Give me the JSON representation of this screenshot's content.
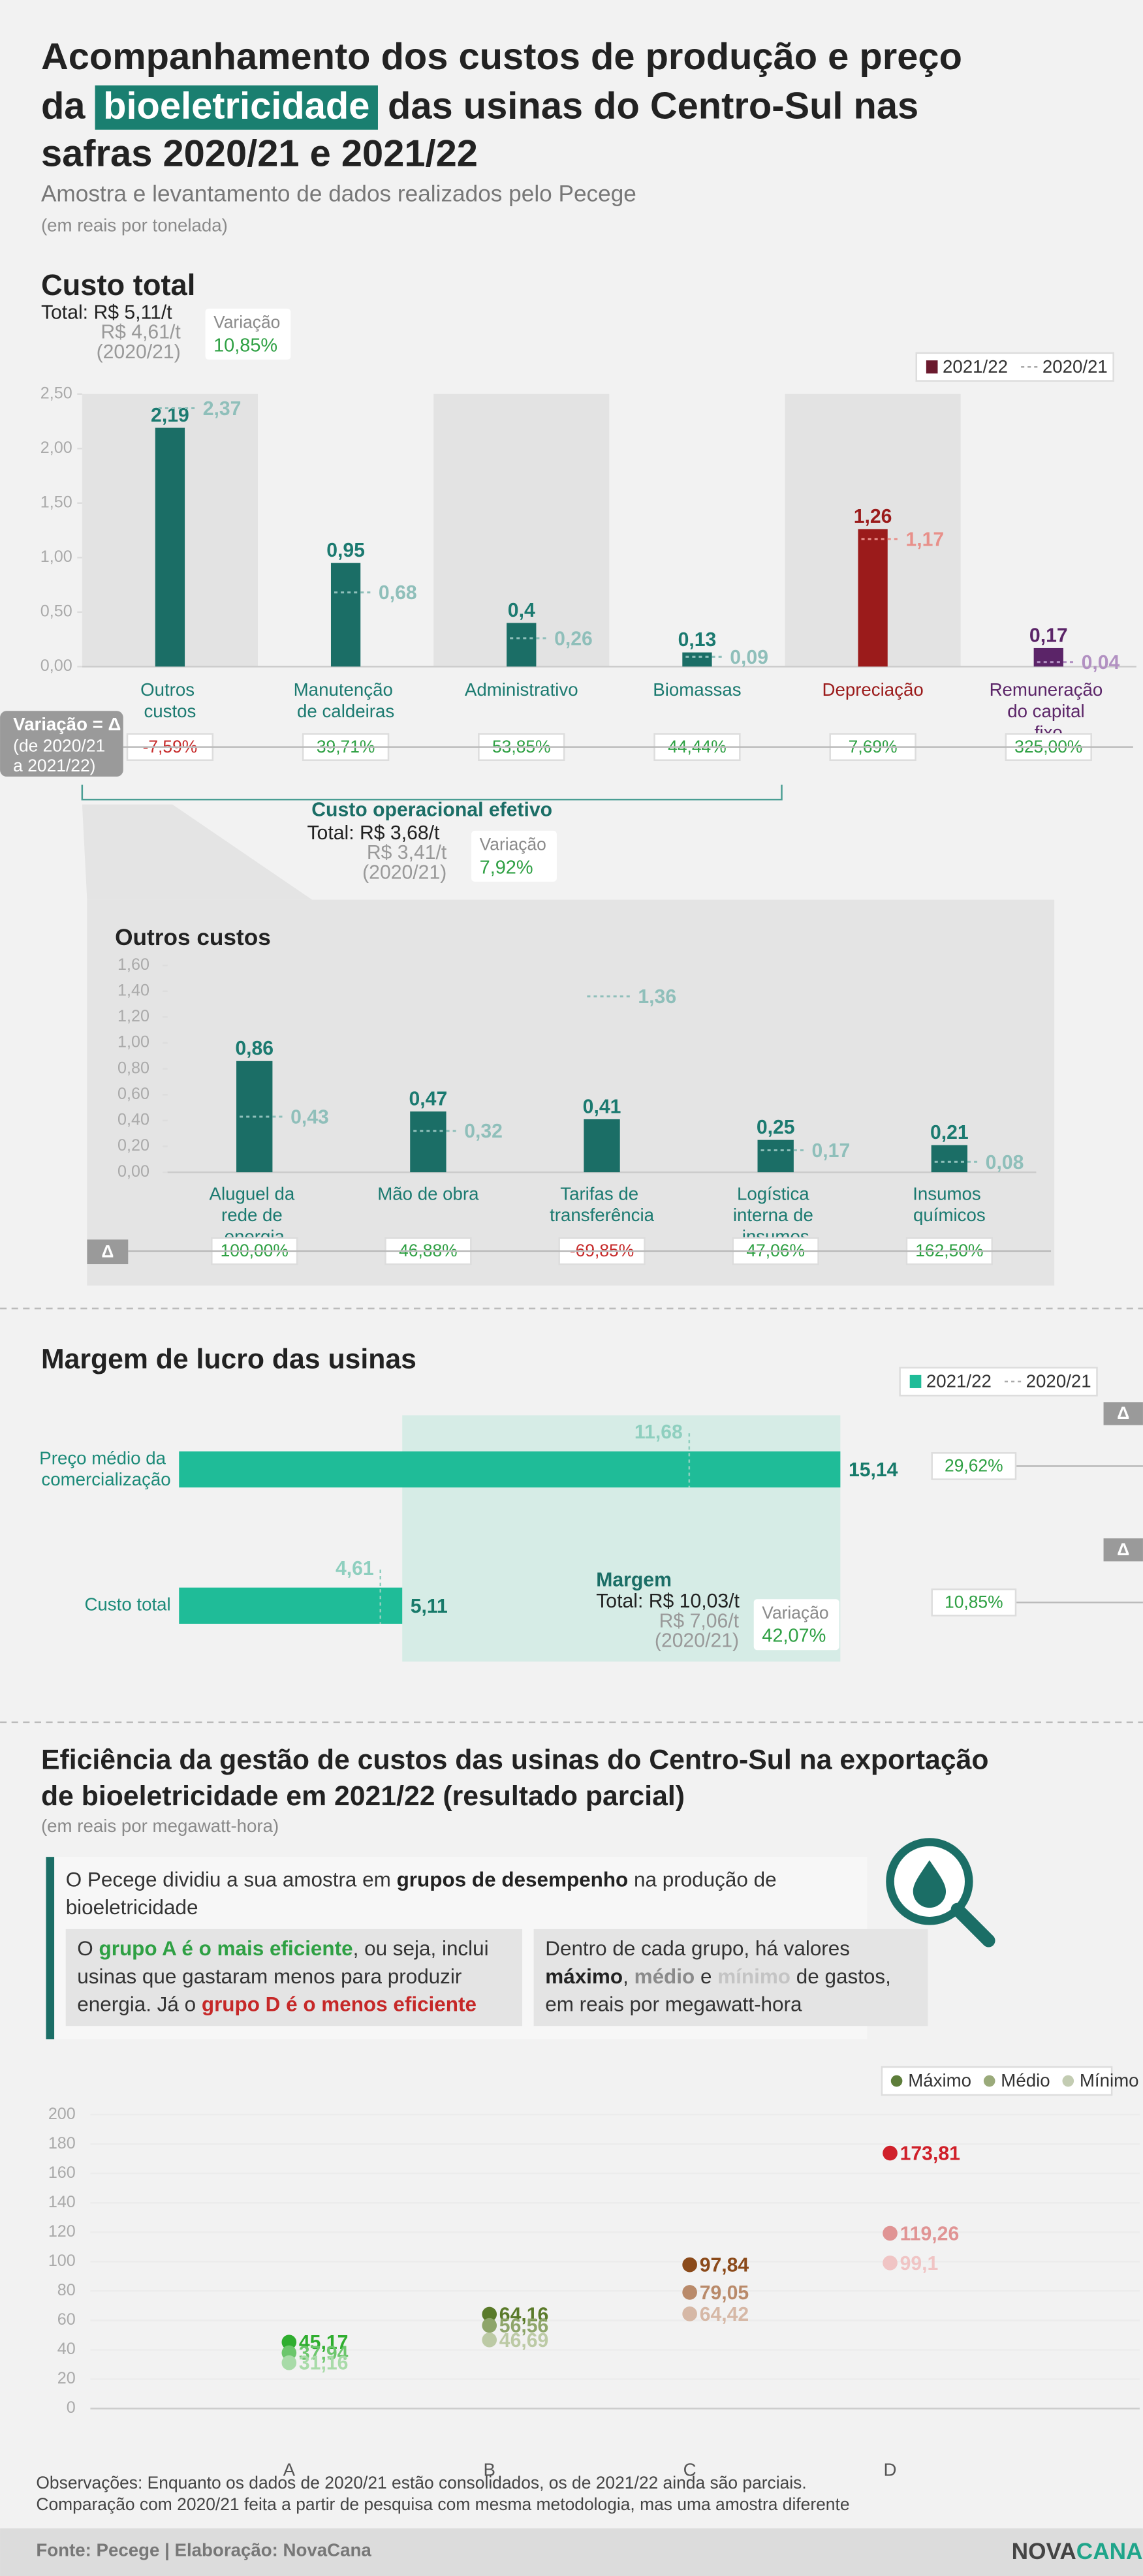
{
  "header": {
    "title_parts": [
      "Acompanhamento dos custos de produção e preço",
      "da",
      "bioeletricidade",
      "das usinas do Centro-Sul nas",
      "safras 2020/21 e 2021/22"
    ],
    "subtitle": "Amostra e levantamento de dados realizados pelo Pecege",
    "unit": "(em reais por tonelada)"
  },
  "chart_data": [
    {
      "type": "bar",
      "title": "Custo total",
      "summary": {
        "total": "Total: R$ 5,11/t",
        "previous": "R$ 4,61/t",
        "previous_period": "(2020/21)",
        "variation_label": "Variação",
        "variation": "10,85%"
      },
      "categories": [
        "Outros custos",
        "Manutenção de caldeiras",
        "Administrativo",
        "Biomassas",
        "Depreciação",
        "Remuneração do capital fixo"
      ],
      "series": [
        {
          "name": "2021/22",
          "color": "#6b1a2e",
          "colors": [
            "#1b6e66",
            "#1b6e66",
            "#1b6e66",
            "#1b6e66",
            "#9b1b1b",
            "#5b2468"
          ],
          "label_colors": [
            "#1b7a70",
            "#1b7a70",
            "#1b7a70",
            "#1b7a70",
            "#9b1b1b",
            "#5b2468"
          ],
          "values": [
            2.19,
            0.95,
            0.4,
            0.13,
            1.26,
            0.17
          ],
          "value_labels": [
            "2,19",
            "0,95",
            "0,4",
            "0,13",
            "1,26",
            "0,17"
          ]
        },
        {
          "name": "2020/21",
          "style": "dashed",
          "color": "#9ec9c4",
          "colors": [
            "#8fbfba",
            "#8fbfba",
            "#8fbfba",
            "#8fbfba",
            "#e8908a",
            "#b291c2"
          ],
          "values": [
            2.37,
            0.68,
            0.26,
            0.09,
            1.17,
            0.04
          ],
          "value_labels": [
            "2,37",
            "0,68",
            "0,26",
            "0,09",
            "1,17",
            "0,04"
          ]
        }
      ],
      "ylim": [
        0,
        2.5
      ],
      "yticks": [
        {
          "value": 0,
          "label": "0,00"
        },
        {
          "value": 0.5,
          "label": "0,50"
        },
        {
          "value": 1,
          "label": "1,00"
        },
        {
          "value": 1.5,
          "label": "1,50"
        },
        {
          "value": 2,
          "label": "2,00"
        },
        {
          "value": 2.5,
          "label": "2,50"
        }
      ],
      "highlight_bands": [
        0,
        2,
        4
      ],
      "legend": "top-right",
      "delta": {
        "label": "Variação = Δ",
        "note": [
          "(de 2020/21",
          "a 2021/22)"
        ],
        "values": [
          "-7,59%",
          "39,71%",
          "53,85%",
          "44,44%",
          "7,69%",
          "325,00%"
        ]
      },
      "subtotal": {
        "title": "Custo operacional efetivo",
        "total": "Total: R$ 3,68/t",
        "previous": "R$ 3,41/t",
        "previous_period": "(2020/21)",
        "variation_label": "Variação",
        "variation": "7,92%"
      }
    },
    {
      "type": "bar",
      "title": "Outros custos",
      "categories": [
        "Aluguel da rede de energia",
        "Mão de obra",
        "Tarifas de transferência",
        "Logística interna de insumos",
        "Insumos químicos"
      ],
      "series": [
        {
          "name": "2021/22",
          "color": "#1b6e66",
          "colors": [
            "#1b6e66",
            "#1b6e66",
            "#1b6e66",
            "#1b6e66",
            "#1b6e66"
          ],
          "label_colors": [
            "#1b7a70",
            "#1b7a70",
            "#1b7a70",
            "#1b7a70",
            "#1b7a70"
          ],
          "values": [
            0.86,
            0.47,
            0.41,
            0.25,
            0.21
          ],
          "value_labels": [
            "0,86",
            "0,47",
            "0,41",
            "0,25",
            "0,21"
          ]
        },
        {
          "name": "2020/21",
          "style": "dashed",
          "color": "#8fbfba",
          "colors": [
            "#8fbfba",
            "#8fbfba",
            "#8fbfba",
            "#8fbfba",
            "#8fbfba"
          ],
          "values": [
            0.43,
            0.32,
            1.36,
            0.17,
            0.08
          ],
          "value_labels": [
            "0,43",
            "0,32",
            "1,36",
            "0,17",
            "0,08"
          ]
        }
      ],
      "ylim": [
        0,
        1.6
      ],
      "yticks": [
        {
          "value": 0,
          "label": "0,00"
        },
        {
          "value": 0.2,
          "label": "0,20"
        },
        {
          "value": 0.4,
          "label": "0,40"
        },
        {
          "value": 0.6,
          "label": "0,60"
        },
        {
          "value": 0.8,
          "label": "0,80"
        },
        {
          "value": 1,
          "label": "1,00"
        },
        {
          "value": 1.2,
          "label": "1,20"
        },
        {
          "value": 1.4,
          "label": "1,40"
        },
        {
          "value": 1.6,
          "label": "1,60"
        }
      ],
      "delta": {
        "label": "Δ",
        "values": [
          "100,00%",
          "46,88%",
          "-69,85%",
          "47,06%",
          "162,50%"
        ]
      }
    },
    {
      "type": "hbar",
      "title": "Margem de lucro das usinas",
      "categories": [
        "Preço médio da comercialização",
        "Custo total"
      ],
      "series": [
        {
          "name": "2021/22",
          "color": "#1fbc98",
          "values": [
            15.14,
            5.11
          ],
          "value_labels": [
            "15,14",
            "5,11"
          ]
        },
        {
          "name": "2020/21",
          "style": "dashed",
          "color": "#8fcfbf",
          "values": [
            11.68,
            4.61
          ],
          "value_labels": [
            "11,68",
            "4,61"
          ]
        }
      ],
      "xlim": [
        0,
        16
      ],
      "legend": "top-right",
      "margin": {
        "title": "Margem",
        "total": "Total: R$ 10,03/t",
        "previous": "R$ 7,06/t",
        "previous_period": "(2020/21)",
        "variation_label": "Variação",
        "variation": "42,07%"
      },
      "delta": {
        "label": "Δ",
        "values": [
          "29,62%",
          "10,85%"
        ]
      }
    },
    {
      "type": "dot",
      "categories": [
        "A",
        "B",
        "C",
        "D"
      ],
      "series": [
        {
          "name": "Máximo",
          "color": "#5d7d3a",
          "colors": [
            "#2fae2f",
            "#5a7a2a",
            "#8b4a1a",
            "#d0202a"
          ],
          "values": [
            45.17,
            64.16,
            97.84,
            173.81
          ],
          "value_labels": [
            "45,17",
            "64,16",
            "97,84",
            "173,81"
          ]
        },
        {
          "name": "Médio",
          "color": "#9aaa7a",
          "colors": [
            "#6cc66c",
            "#8ea56a",
            "#b98a6a",
            "#e09494"
          ],
          "values": [
            37.94,
            56.56,
            79.05,
            119.26
          ],
          "value_labels": [
            "37,94",
            "56,56",
            "79,05",
            "119,26"
          ]
        },
        {
          "name": "Mínimo",
          "color": "#c3ccb2",
          "colors": [
            "#a8dba8",
            "#bccaa5",
            "#d6b8a6",
            "#f0c4c4"
          ],
          "values": [
            31.16,
            46.69,
            64.42,
            99.1
          ],
          "value_labels": [
            "31,16",
            "46,69",
            "64,42",
            "99,1"
          ]
        }
      ],
      "ylim": [
        0,
        200
      ],
      "yticks": [
        0,
        20,
        40,
        60,
        80,
        100,
        120,
        140,
        160,
        180,
        200
      ],
      "legend": "top-right"
    }
  ],
  "efficiency": {
    "title_lines": [
      "Eficiência da gestão de custos das usinas do Centro-Sul na exportação",
      "de bioeletricidade em 2021/22 (resultado parcial)"
    ],
    "unit": "(em reais por megawatt-hora)",
    "paragraphs": [
      [
        {
          "text": "O Pecege dividiu a sua amostra em ",
          "style": "plain"
        },
        {
          "text": "grupos de desempenho",
          "style": "bold"
        },
        {
          "text": " na produção de bioeletricidade",
          "style": "plain"
        }
      ],
      [
        {
          "text": "O ",
          "style": "plain"
        },
        {
          "text": "grupo A é o mais eficiente",
          "style": "green"
        },
        {
          "text": ", ou seja, inclui usinas que gastaram menos para produzir energia. Já o ",
          "style": "plain"
        },
        {
          "text": "grupo D é o menos eficiente",
          "style": "red"
        }
      ],
      [
        {
          "text": "Dentro de cada grupo, há valores ",
          "style": "plain"
        },
        {
          "text": "máximo",
          "style": "bold"
        },
        {
          "text": ", ",
          "style": "plain"
        },
        {
          "text": "médio",
          "style": "mid"
        },
        {
          "text": " e ",
          "style": "plain"
        },
        {
          "text": "mínimo",
          "style": "light"
        },
        {
          "text": " de gastos, em reais por megawatt-hora",
          "style": "plain"
        }
      ]
    ]
  },
  "footer": {
    "notes": [
      "Observações: Enquanto os dados de 2020/21 estão consolidados, os de 2021/22 ainda são parciais.",
      "Comparação com 2020/21 feita a partir de pesquisa com mesma metodologia, mas uma amostra diferente"
    ],
    "source": "Fonte: Pecege | Elaboração: NovaCana",
    "logo": [
      "NOVA",
      "CANA"
    ]
  }
}
